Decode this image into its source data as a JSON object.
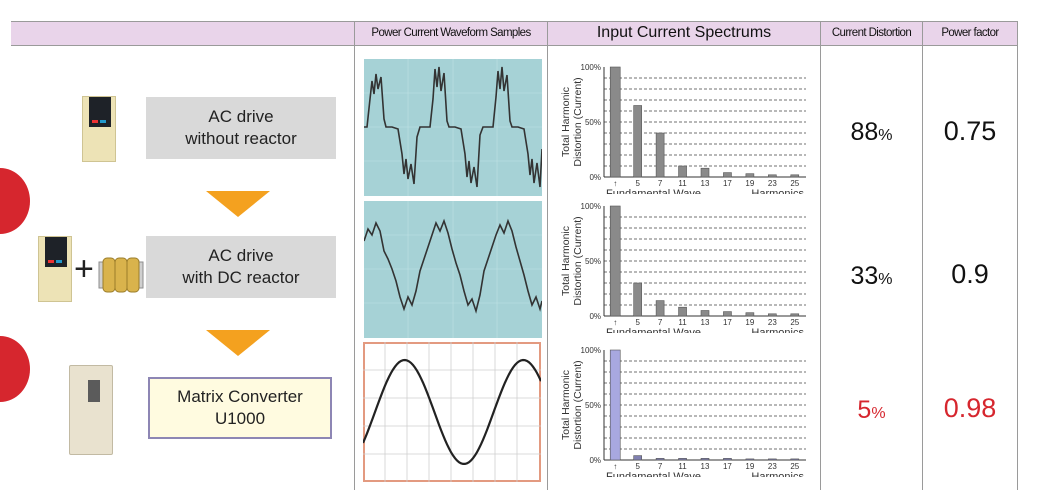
{
  "header": {
    "waveform": "Power Current Waveform Samples",
    "spectrum": "Input Current Spectrums",
    "distortion": "Current Distortion",
    "power_factor": "Power factor"
  },
  "rows": [
    {
      "config_line1": "AC drive",
      "config_line2": "without reactor",
      "distortion_value": "88",
      "distortion_unit": "%",
      "power_factor": "0.75"
    },
    {
      "config_line1": "AC drive",
      "config_line2": "with DC reactor",
      "plus": "+",
      "distortion_value": "33",
      "distortion_unit": "%",
      "power_factor": "0.9"
    },
    {
      "config_line1": "Matrix Converter",
      "config_line2": "U1000",
      "distortion_value": "5",
      "distortion_unit": "%",
      "power_factor": "0.98"
    }
  ],
  "chart_data": [
    {
      "type": "bar",
      "categories": [
        "1",
        "5",
        "7",
        "11",
        "13",
        "17",
        "19",
        "23",
        "25"
      ],
      "tick_labels": [
        "↑",
        "5",
        "7",
        "11",
        "13",
        "17",
        "19",
        "23",
        "25"
      ],
      "values": [
        100,
        65,
        40,
        10,
        8,
        4,
        3,
        2,
        2
      ],
      "ylabel_line1": "Total Harmonic",
      "ylabel_line2": "Distortion (Current)",
      "yticks": [
        "100%",
        "50%",
        "0%"
      ],
      "ylim": [
        0,
        100
      ],
      "xlabel_left": "Fundamental Wave",
      "xlabel_right": "Harmonics",
      "bar_color": "#8a8a8a",
      "first_bar_color": "#8a8a8a"
    },
    {
      "type": "bar",
      "categories": [
        "1",
        "5",
        "7",
        "11",
        "13",
        "17",
        "19",
        "23",
        "25"
      ],
      "tick_labels": [
        "↑",
        "5",
        "7",
        "11",
        "13",
        "17",
        "19",
        "23",
        "25"
      ],
      "values": [
        100,
        30,
        14,
        8,
        5,
        4,
        3,
        2,
        2
      ],
      "ylabel_line1": "Total Harmonic",
      "ylabel_line2": "Distortion (Current)",
      "yticks": [
        "100%",
        "50%",
        "0%"
      ],
      "ylim": [
        0,
        100
      ],
      "xlabel_left": "Fundamental Wave",
      "xlabel_right": "Harmonics",
      "bar_color": "#8a8a8a",
      "first_bar_color": "#8a8a8a"
    },
    {
      "type": "bar",
      "categories": [
        "1",
        "5",
        "7",
        "11",
        "13",
        "17",
        "19",
        "23",
        "25"
      ],
      "tick_labels": [
        "↑",
        "5",
        "7",
        "11",
        "13",
        "17",
        "19",
        "23",
        "25"
      ],
      "values": [
        100,
        4,
        1.5,
        1.5,
        1.5,
        1.5,
        1,
        1,
        1
      ],
      "ylabel_line1": "Total Harmonic",
      "ylabel_line2": "Distortion (Current)",
      "yticks": [
        "100%",
        "50%",
        "0%"
      ],
      "ylim": [
        0,
        100
      ],
      "xlabel_left": "Fundamental Wave",
      "xlabel_right": "Harmonics",
      "bar_color": "#8080b0",
      "first_bar_color": "#a8a8e0"
    }
  ],
  "colors": {
    "header_bg": "#e9d4ea",
    "config_box_gray": "#d9d9d9",
    "highlight_box_bg": "#fffbe0",
    "highlight_box_border": "#8d86b4",
    "arrow": "#f4a11f",
    "accent_red": "#d6262e",
    "waveform_bg": "#a6d2d6",
    "sine_frame": "#e39a80"
  },
  "icons": {
    "row1": [
      "ac-drive-icon"
    ],
    "row2": [
      "ac-drive-icon",
      "dc-reactor-icon"
    ],
    "row3": [
      "matrix-converter-icon"
    ],
    "arrows": [
      "down-arrow-icon",
      "down-arrow-icon"
    ]
  }
}
